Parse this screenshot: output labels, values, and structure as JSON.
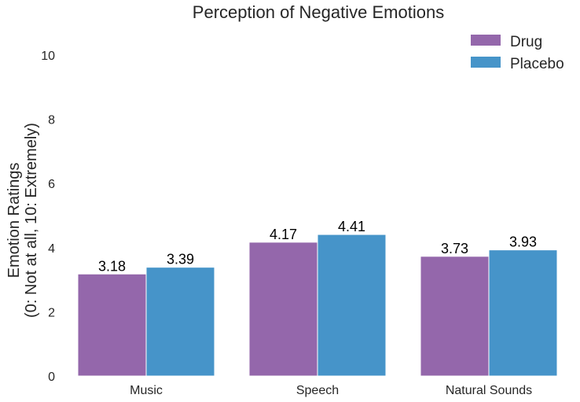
{
  "chart_data": {
    "type": "bar",
    "title": "Perception of Negative Emotions",
    "ylabel_line1": "Emotion Ratings",
    "ylabel_line2": "(0: Not at all, 10: Extremely)",
    "xlabel": "",
    "categories": [
      "Music",
      "Speech",
      "Natural Sounds"
    ],
    "series": [
      {
        "name": "Drug",
        "values": [
          3.18,
          4.17,
          3.73
        ],
        "color": "#9467ab"
      },
      {
        "name": "Placebo",
        "values": [
          3.39,
          4.41,
          3.93
        ],
        "color": "#4694c9"
      }
    ],
    "ylim": [
      0,
      10
    ],
    "yticks": [
      "0",
      "2",
      "4",
      "6",
      "8",
      "10"
    ],
    "grid": false,
    "legend": "top-right",
    "data_labels": [
      [
        "3.18",
        "4.17",
        "3.73"
      ],
      [
        "3.39",
        "4.41",
        "3.93"
      ]
    ]
  }
}
